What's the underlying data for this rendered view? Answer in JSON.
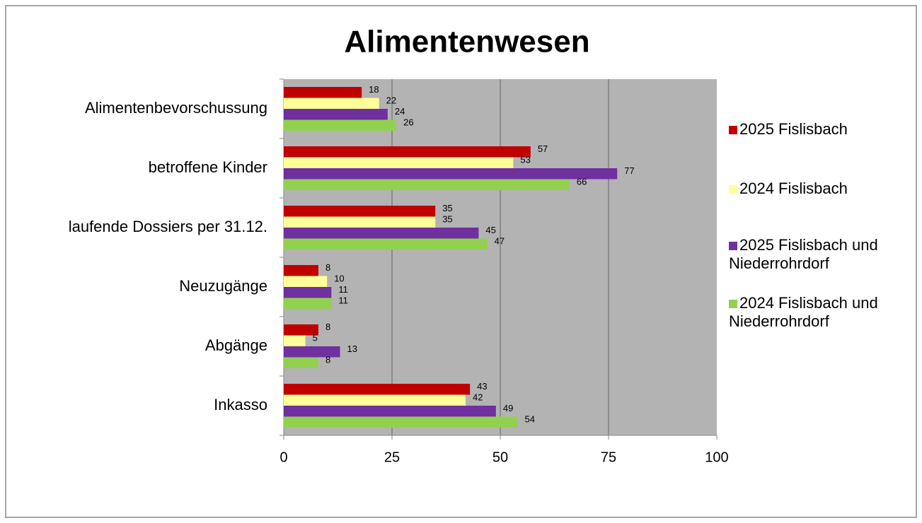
{
  "chart_data": {
    "type": "hbar",
    "title": "Alimentenwesen",
    "categories": [
      "Alimentenbevorschussung",
      "betroffene Kinder",
      "laufende Dossiers per 31.12.",
      "Neuzugänge",
      "Abgänge",
      "Inkasso"
    ],
    "series": [
      {
        "name": "2025 Fislisbach",
        "color": "#c00000",
        "values": [
          18,
          57,
          35,
          8,
          8,
          43
        ]
      },
      {
        "name": "2024 Fislisbach",
        "color": "#ffff99",
        "values": [
          22,
          53,
          35,
          10,
          5,
          42
        ]
      },
      {
        "name": "2025 Fislisbach und Niederrohrdorf",
        "color": "#7030a0",
        "values": [
          24,
          77,
          45,
          11,
          13,
          49
        ]
      },
      {
        "name": "2024 Fislisbach und Niederrohrdorf",
        "color": "#92d050",
        "values": [
          26,
          66,
          47,
          11,
          8,
          54
        ]
      }
    ],
    "xlim": [
      0,
      100
    ],
    "xticks": [
      0,
      25,
      50,
      75,
      100
    ],
    "grid": true,
    "legend": "right"
  }
}
